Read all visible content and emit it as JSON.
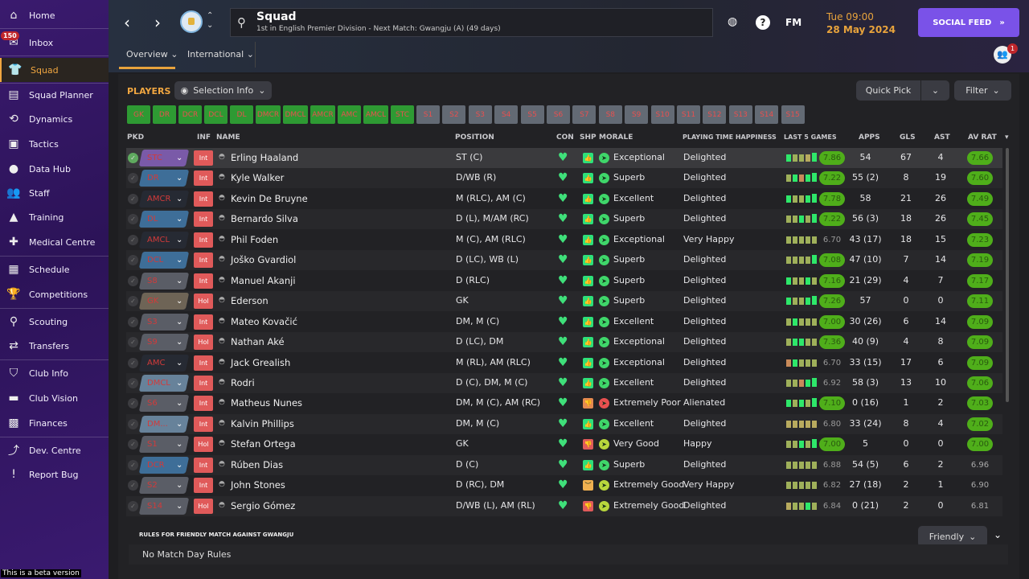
{
  "sidebar": {
    "items": [
      {
        "label": "Home",
        "icon": "home-icon"
      },
      {
        "label": "Inbox",
        "icon": "inbox-icon",
        "badge": "150"
      },
      {
        "label": "Squad",
        "icon": "shirt-icon",
        "active": true
      },
      {
        "label": "Squad Planner",
        "icon": "clipboard-icon"
      },
      {
        "label": "Dynamics",
        "icon": "dynamics-icon"
      },
      {
        "label": "Tactics",
        "icon": "tactics-icon"
      },
      {
        "label": "Data Hub",
        "icon": "data-hub-icon"
      },
      {
        "label": "Staff",
        "icon": "staff-icon"
      },
      {
        "label": "Training",
        "icon": "training-icon"
      },
      {
        "label": "Medical Centre",
        "icon": "medical-icon"
      },
      {
        "label": "Schedule",
        "icon": "calendar-icon"
      },
      {
        "label": "Competitions",
        "icon": "trophy-icon"
      },
      {
        "label": "Scouting",
        "icon": "search-icon"
      },
      {
        "label": "Transfers",
        "icon": "transfer-icon"
      },
      {
        "label": "Club Info",
        "icon": "shield-icon"
      },
      {
        "label": "Club Vision",
        "icon": "briefcase-icon"
      },
      {
        "label": "Finances",
        "icon": "finances-icon"
      },
      {
        "label": "Dev. Centre",
        "icon": "dev-centre-icon"
      },
      {
        "label": "Report Bug",
        "icon": "bug-icon"
      }
    ],
    "beta": "This is a beta version"
  },
  "header": {
    "title": "Squad",
    "subtitle": "1st in English Premier Division - Next Match: Gwangju (A) (49 days)",
    "tabs": [
      "Overview",
      "International"
    ],
    "fm": "FM",
    "help": "?",
    "time": "Tue 09:00",
    "date": "28 May 2024",
    "social": "SOCIAL FEED",
    "notif_count": "1"
  },
  "toolbar": {
    "players": "PLAYERS",
    "selection_info": "Selection Info",
    "quick_pick": "Quick Pick",
    "filter": "Filter"
  },
  "positions": {
    "filled": [
      "GK",
      "DR",
      "DCR",
      "DCL",
      "DL",
      "DMCR",
      "DMCL",
      "AMCR",
      "AMC",
      "AMCL",
      "STC"
    ],
    "subs": [
      "S1",
      "S2",
      "S3",
      "S4",
      "S5",
      "S6",
      "S7",
      "S8",
      "S9",
      "S10",
      "S11",
      "S12",
      "S13",
      "S14",
      "S15"
    ]
  },
  "columns": {
    "pkd": "PKD",
    "inf": "INF",
    "name": "NAME",
    "position": "POSITION",
    "con": "CON",
    "shp": "SHP",
    "morale": "MORALE",
    "happiness": "PLAYING TIME HAPPINESS",
    "last5": "LAST 5 GAMES",
    "apps": "APPS",
    "gls": "GLS",
    "ast": "AST",
    "avrat": "AV RAT"
  },
  "colors": {
    "accent": "#f0a640",
    "social": "#7a52e8",
    "good": "#4fae1a"
  },
  "players": [
    {
      "pkd": "STC",
      "pkdc": "purple",
      "inf": "Int",
      "name": "Erling Haaland",
      "pos": "ST (C)",
      "shp": "up",
      "mor": "green",
      "morale": "Exceptional",
      "hap": "Delighted",
      "l5": "GLLYG",
      "l5avg": "7.86",
      "apps": "54",
      "gls": "67",
      "ast": "4",
      "avr": "7.66",
      "sel": true
    },
    {
      "pkd": "DR",
      "pkdc": "blue",
      "inf": "Int",
      "name": "Kyle Walker",
      "pos": "D/WB (R)",
      "shp": "up",
      "mor": "green",
      "morale": "Superb",
      "hap": "Delighted",
      "l5": "LGOGG",
      "l5avg": "7.22",
      "apps": "55 (2)",
      "gls": "8",
      "ast": "19",
      "avr": "7.60"
    },
    {
      "pkd": "AMCR",
      "pkdc": "none",
      "inf": "Int",
      "name": "Kevin De Bruyne",
      "pos": "M (RLC), AM (C)",
      "shp": "up",
      "mor": "green",
      "morale": "Excellent",
      "hap": "Delighted",
      "l5": "GLLGG",
      "l5avg": "7.78",
      "apps": "58",
      "gls": "21",
      "ast": "26",
      "avr": "7.49"
    },
    {
      "pkd": "DL",
      "pkdc": "blue",
      "inf": "Int",
      "name": "Bernardo Silva",
      "pos": "D (L), M/AM (RC)",
      "shp": "up",
      "mor": "green",
      "morale": "Superb",
      "hap": "Delighted",
      "l5": "LLGLG",
      "l5avg": "7.22",
      "apps": "56 (3)",
      "gls": "18",
      "ast": "26",
      "avr": "7.45"
    },
    {
      "pkd": "AMCL",
      "pkdc": "none",
      "inf": "Int",
      "name": "Phil Foden",
      "pos": "M (C), AM (RLC)",
      "shp": "up",
      "mor": "green",
      "morale": "Exceptional",
      "hap": "Very Happy",
      "l5": "LLLLL",
      "l5avg": "6.70",
      "apps": "43 (17)",
      "gls": "18",
      "ast": "15",
      "avr": "7.23"
    },
    {
      "pkd": "DCL",
      "pkdc": "blue",
      "inf": "Int",
      "name": "Joško Gvardiol",
      "pos": "D (LC), WB (L)",
      "shp": "up",
      "mor": "green",
      "morale": "Superb",
      "hap": "Delighted",
      "l5": "LLLLG",
      "l5avg": "7.08",
      "apps": "47 (10)",
      "gls": "7",
      "ast": "14",
      "avr": "7.19"
    },
    {
      "pkd": "S8",
      "pkdc": "grey",
      "inf": "Int",
      "name": "Manuel Akanji",
      "pos": "D (RLC)",
      "shp": "up",
      "mor": "green",
      "morale": "Superb",
      "hap": "Delighted",
      "l5": "GLLGL",
      "l5avg": "7.16",
      "apps": "21 (29)",
      "gls": "4",
      "ast": "7",
      "avr": "7.17"
    },
    {
      "pkd": "GK",
      "pkdc": "brown",
      "inf": "Hol",
      "name": "Ederson",
      "pos": "GK",
      "shp": "up",
      "mor": "green",
      "morale": "Superb",
      "hap": "Delighted",
      "l5": "GLLGG",
      "l5avg": "7.26",
      "apps": "57",
      "gls": "0",
      "ast": "0",
      "avr": "7.11"
    },
    {
      "pkd": "S3",
      "pkdc": "grey",
      "inf": "Int",
      "name": "Mateo Kovačić",
      "pos": "DM, M (C)",
      "shp": "up",
      "mor": "green",
      "morale": "Excellent",
      "hap": "Delighted",
      "l5": "LGLLL",
      "l5avg": "7.00",
      "apps": "30 (26)",
      "gls": "6",
      "ast": "14",
      "avr": "7.09"
    },
    {
      "pkd": "S9",
      "pkdc": "grey",
      "inf": "Hol",
      "name": "Nathan Aké",
      "pos": "D (LC), DM",
      "shp": "up",
      "mor": "green",
      "morale": "Exceptional",
      "hap": "Delighted",
      "l5": "LGGLL",
      "l5avg": "7.36",
      "apps": "40 (9)",
      "gls": "4",
      "ast": "8",
      "avr": "7.09"
    },
    {
      "pkd": "AMC",
      "pkdc": "none",
      "inf": "Int",
      "name": "Jack Grealish",
      "pos": "M (RL), AM (RLC)",
      "shp": "up",
      "mor": "green",
      "morale": "Exceptional",
      "hap": "Delighted",
      "l5": "OGLLL",
      "l5avg": "6.70",
      "apps": "33 (15)",
      "gls": "17",
      "ast": "6",
      "avr": "7.09"
    },
    {
      "pkd": "DMCL",
      "pkdc": "lightblue",
      "inf": "Int",
      "name": "Rodri",
      "pos": "D (C), DM, M (C)",
      "shp": "up",
      "mor": "green",
      "morale": "Excellent",
      "hap": "Delighted",
      "l5": "LLOGG",
      "l5avg": "6.92",
      "apps": "58 (3)",
      "gls": "13",
      "ast": "10",
      "avr": "7.06"
    },
    {
      "pkd": "S6",
      "pkdc": "grey",
      "inf": "Int",
      "name": "Matheus Nunes",
      "pos": "DM, M (C), AM (RC)",
      "shp": "down-orange",
      "mor": "red",
      "morale": "Extremely Poor",
      "hap": "Alienated",
      "l5": "GLGLG",
      "l5avg": "7.10",
      "apps": "0 (16)",
      "gls": "1",
      "ast": "2",
      "avr": "7.03"
    },
    {
      "pkd": "DM...",
      "pkdc": "lightblue",
      "inf": "Int",
      "name": "Kalvin Phillips",
      "pos": "DM, M (C)",
      "shp": "up",
      "mor": "green",
      "morale": "Excellent",
      "hap": "Delighted",
      "l5": "YYYYY",
      "l5avg": "6.80",
      "apps": "33 (24)",
      "gls": "8",
      "ast": "4",
      "avr": "7.02"
    },
    {
      "pkd": "S1",
      "pkdc": "grey",
      "inf": "Hol",
      "name": "Stefan Ortega",
      "pos": "GK",
      "shp": "down-red",
      "mor": "yellow",
      "morale": "Very Good",
      "hap": "Happy",
      "l5": "LLGLG",
      "l5avg": "7.00",
      "apps": "5",
      "gls": "0",
      "ast": "0",
      "avr": "7.00"
    },
    {
      "pkd": "DCR",
      "pkdc": "blue",
      "inf": "Int",
      "name": "Rúben Dias",
      "pos": "D (C)",
      "shp": "up",
      "mor": "green",
      "morale": "Superb",
      "hap": "Delighted",
      "l5": "LLLLL",
      "l5avg": "6.88",
      "apps": "54 (5)",
      "gls": "6",
      "ast": "2",
      "avr": "6.96"
    },
    {
      "pkd": "S2",
      "pkdc": "grey",
      "inf": "Int",
      "name": "John Stones",
      "pos": "D (RC), DM",
      "shp": "meh",
      "mor": "yellow",
      "morale": "Extremely Good",
      "hap": "Very Happy",
      "l5": "LLLLL",
      "l5avg": "6.82",
      "apps": "27 (18)",
      "gls": "2",
      "ast": "1",
      "avr": "6.90"
    },
    {
      "pkd": "S14",
      "pkdc": "grey",
      "inf": "Hol",
      "name": "Sergio Gómez",
      "pos": "D/WB (L), AM (RL)",
      "shp": "down-red",
      "mor": "yellow",
      "morale": "Extremely Good",
      "hap": "Delighted",
      "l5": "YLLGL",
      "l5avg": "6.84",
      "apps": "0 (21)",
      "gls": "2",
      "ast": "0",
      "avr": "6.81"
    }
  ],
  "rules": {
    "title": "RULES FOR FRIENDLY MATCH AGAINST GWANGJU",
    "text": "No Match Day Rules",
    "dropdown": "Friendly"
  }
}
